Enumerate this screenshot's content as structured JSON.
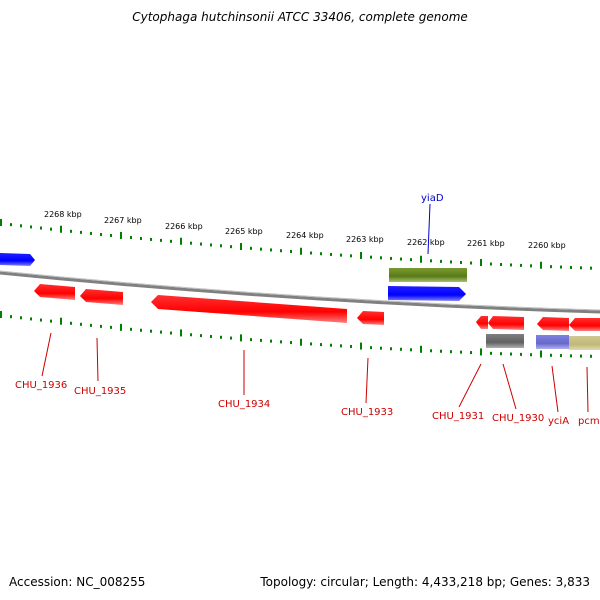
{
  "title": "Cytophaga hutchinsonii ATCC 33406, complete genome",
  "footer": {
    "accession_label": "Accession: NC_008255",
    "topology": "Topology: circular; Length: 4,433,218 bp; Genes: 3,833"
  },
  "colors": {
    "backbone": "#808080",
    "tick": "#008000",
    "gene_red": "#ff0000",
    "gene_blue": "#0000ff",
    "gene_olive": "#6b8e23",
    "gene_gray": "#707070",
    "gene_purple": "#7070d0",
    "gene_khaki": "#c8c080",
    "label_red": "#cc0000",
    "label_blue": "#0000cc"
  },
  "scale_labels": [
    "2268 kbp",
    "2267 kbp",
    "2266 kbp",
    "2265 kbp",
    "2264 kbp",
    "2263 kbp",
    "2262 kbp",
    "2261 kbp",
    "2260 kbp"
  ],
  "genes": [
    {
      "name": "",
      "strand": "plus",
      "color": "gene_blue"
    },
    {
      "name": "CHU_1936",
      "strand": "minus",
      "color": "gene_red"
    },
    {
      "name": "CHU_1935",
      "strand": "minus",
      "color": "gene_red"
    },
    {
      "name": "CHU_1934",
      "strand": "minus",
      "color": "gene_red"
    },
    {
      "name": "CHU_1933",
      "strand": "minus",
      "color": "gene_red"
    },
    {
      "name": "yiaD",
      "strand": "plus",
      "color": "gene_blue"
    },
    {
      "name": "",
      "strand": "plus",
      "color": "gene_olive"
    },
    {
      "name": "CHU_1931",
      "strand": "minus",
      "color": "gene_red"
    },
    {
      "name": "CHU_1930",
      "strand": "minus",
      "color": "gene_red"
    },
    {
      "name": "",
      "strand": "minus",
      "color": "gene_gray"
    },
    {
      "name": "yciA",
      "strand": "minus",
      "color": "gene_red"
    },
    {
      "name": "pcm",
      "strand": "minus",
      "color": "gene_red"
    },
    {
      "name": "",
      "strand": "minus",
      "color": "gene_purple"
    },
    {
      "name": "",
      "strand": "minus",
      "color": "gene_khaki"
    }
  ]
}
